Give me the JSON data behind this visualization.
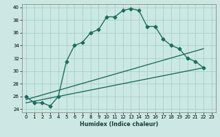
{
  "xlabel": "Humidex (Indice chaleur)",
  "background_color": "#cce8e4",
  "grid_color": "#a8d0cc",
  "line_color": "#1a6e5e",
  "xlim": [
    -0.5,
    23.5
  ],
  "ylim": [
    23.5,
    40.5
  ],
  "xticks": [
    0,
    1,
    2,
    3,
    4,
    5,
    6,
    7,
    8,
    9,
    10,
    11,
    12,
    13,
    14,
    15,
    16,
    17,
    18,
    19,
    20,
    21,
    22,
    23
  ],
  "yticks": [
    24,
    26,
    28,
    30,
    32,
    34,
    36,
    38,
    40
  ],
  "curve1_x": [
    0,
    1,
    2,
    3,
    4,
    5,
    6,
    7,
    8,
    9,
    10,
    11,
    12,
    13,
    14,
    15,
    16,
    17,
    18,
    19,
    20,
    21,
    22
  ],
  "curve1_y": [
    26.0,
    25.0,
    25.0,
    24.5,
    26.0,
    31.5,
    34.0,
    34.5,
    36.0,
    36.5,
    38.5,
    38.5,
    39.5,
    39.8,
    39.5,
    37.0,
    37.0,
    35.0,
    34.0,
    33.5,
    32.0,
    31.5,
    30.5
  ],
  "line2_x": [
    0,
    22
  ],
  "line2_y": [
    25.5,
    33.5
  ],
  "line3_x": [
    0,
    22
  ],
  "line3_y": [
    25.0,
    30.5
  ],
  "line_width": 1.0,
  "marker_size": 2.5,
  "xlabel_fontsize": 5.8,
  "tick_fontsize": 5.0
}
